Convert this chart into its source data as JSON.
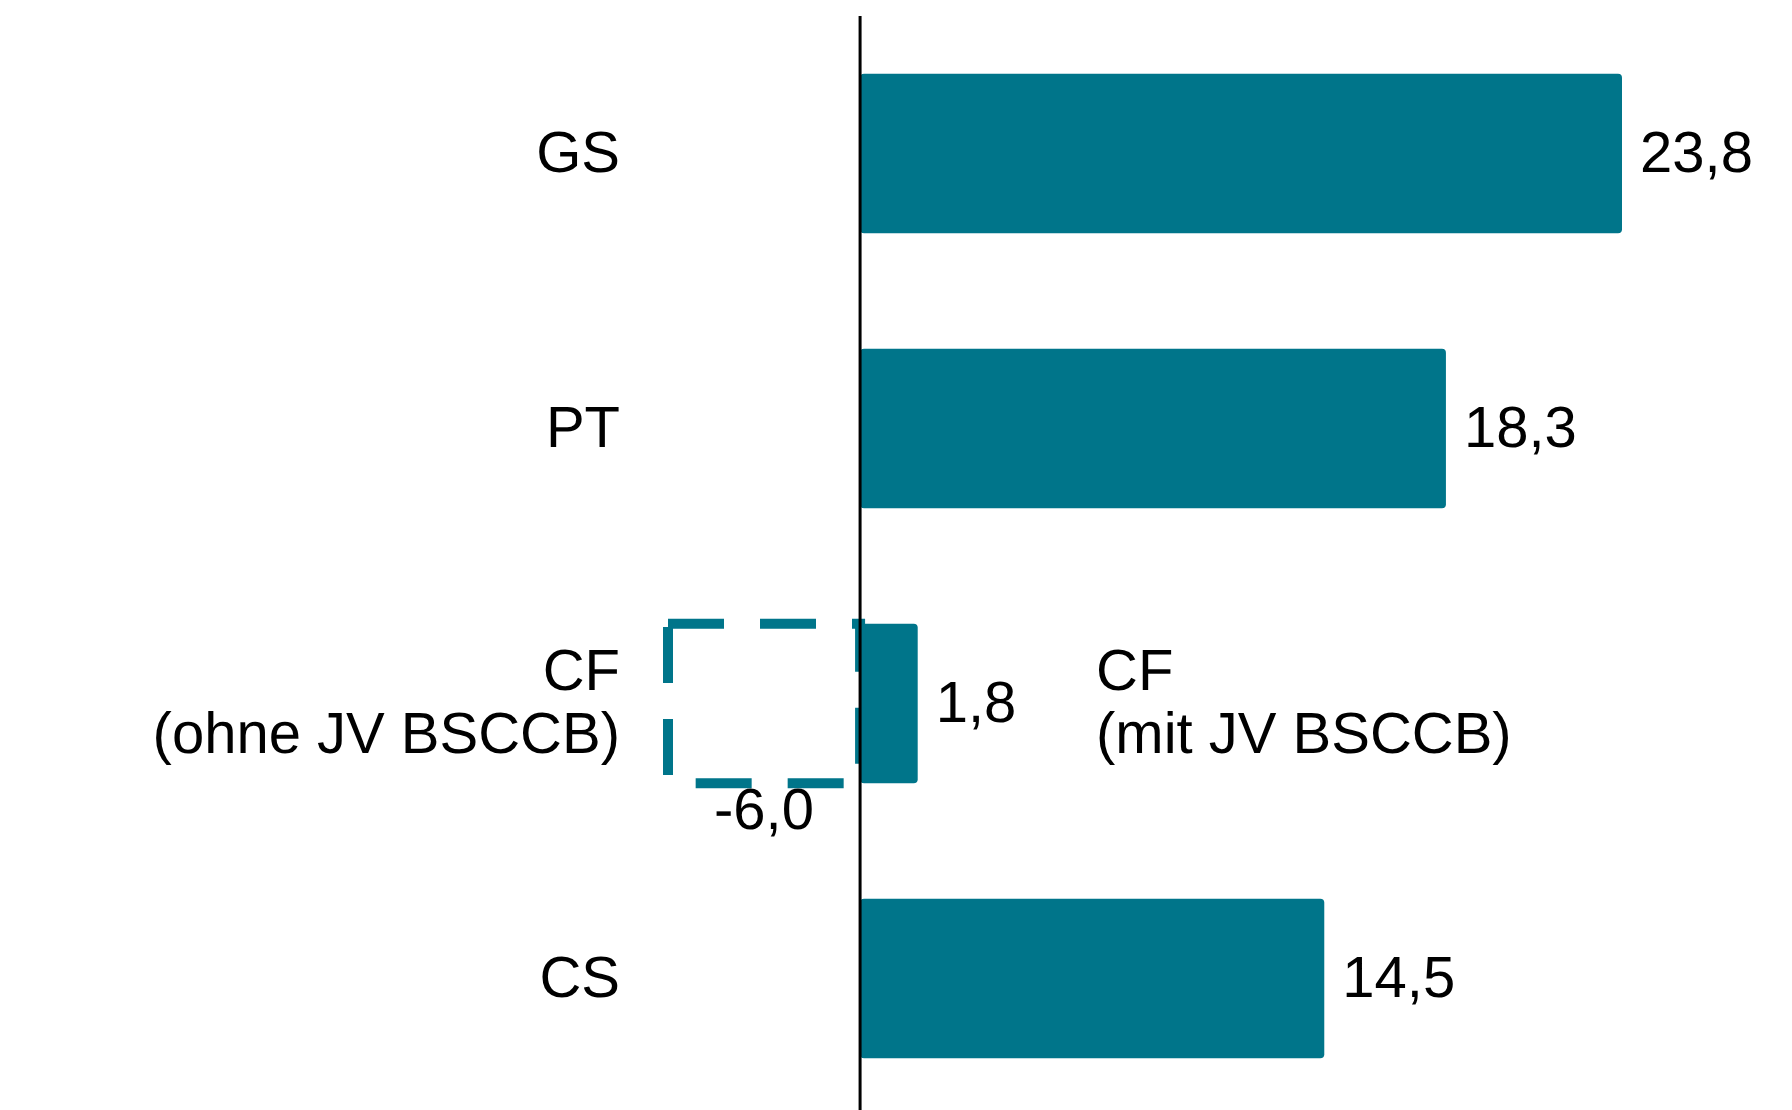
{
  "chart_data": {
    "type": "bar",
    "orientation": "horizontal",
    "categories": [
      "GS",
      "PT",
      "CF\n(ohne JV BSCCB)",
      "CS"
    ],
    "series": [
      {
        "color": "#00758a",
        "values": [
          23.8,
          18.3,
          1.8,
          14.5
        ],
        "value_labels": [
          "23,8",
          "18,3",
          "1,8",
          "14,5"
        ]
      },
      {
        "color": "#00758a",
        "values": [
          null,
          null,
          -6.0,
          null
        ],
        "value_labels": [
          null,
          null,
          "-6,0",
          null
        ],
        "line_style": "dashed"
      }
    ],
    "annotations": [
      "CF\n(mit JV BSCCB)"
    ]
  }
}
